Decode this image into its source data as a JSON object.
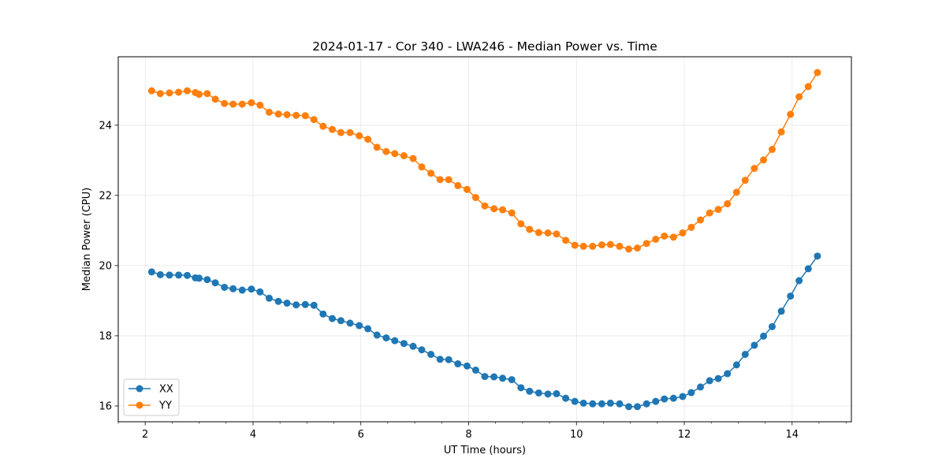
{
  "chart_data": {
    "type": "line",
    "title": "2024-01-17 - Cor 340 - LWA246 - Median Power vs. Time",
    "xlabel": "UT Time (hours)",
    "ylabel": "Median Power (CPU)",
    "xlim": [
      1.5,
      15.1
    ],
    "ylim": [
      15.55,
      25.95
    ],
    "xticks": [
      2,
      4,
      6,
      8,
      10,
      12,
      14
    ],
    "xtick_labels": [
      "2",
      "4",
      "6",
      "8",
      "10",
      "12",
      "14"
    ],
    "yticks": [
      16,
      18,
      20,
      22,
      24
    ],
    "ytick_labels": [
      "16",
      "18",
      "20",
      "22",
      "24"
    ],
    "grid": true,
    "legend_position": "lower-left",
    "series": [
      {
        "name": "XX",
        "color": "#1f77b4",
        "points": [
          [
            2.12,
            19.82
          ],
          [
            2.28,
            19.74
          ],
          [
            2.45,
            19.73
          ],
          [
            2.62,
            19.73
          ],
          [
            2.78,
            19.72
          ],
          [
            2.93,
            19.65
          ],
          [
            3.0,
            19.64
          ],
          [
            3.15,
            19.6
          ],
          [
            3.3,
            19.51
          ],
          [
            3.47,
            19.38
          ],
          [
            3.63,
            19.34
          ],
          [
            3.8,
            19.3
          ],
          [
            3.97,
            19.33
          ],
          [
            4.13,
            19.25
          ],
          [
            4.3,
            19.07
          ],
          [
            4.47,
            18.98
          ],
          [
            4.63,
            18.93
          ],
          [
            4.8,
            18.88
          ],
          [
            4.97,
            18.89
          ],
          [
            5.13,
            18.87
          ],
          [
            5.3,
            18.62
          ],
          [
            5.47,
            18.49
          ],
          [
            5.63,
            18.43
          ],
          [
            5.8,
            18.36
          ],
          [
            5.97,
            18.29
          ],
          [
            6.13,
            18.2
          ],
          [
            6.3,
            18.02
          ],
          [
            6.47,
            17.94
          ],
          [
            6.63,
            17.86
          ],
          [
            6.8,
            17.78
          ],
          [
            6.97,
            17.7
          ],
          [
            7.13,
            17.6
          ],
          [
            7.3,
            17.47
          ],
          [
            7.47,
            17.33
          ],
          [
            7.63,
            17.32
          ],
          [
            7.8,
            17.2
          ],
          [
            7.97,
            17.14
          ],
          [
            8.13,
            17.02
          ],
          [
            8.3,
            16.84
          ],
          [
            8.47,
            16.83
          ],
          [
            8.63,
            16.79
          ],
          [
            8.8,
            16.75
          ],
          [
            8.97,
            16.52
          ],
          [
            9.13,
            16.42
          ],
          [
            9.3,
            16.37
          ],
          [
            9.47,
            16.34
          ],
          [
            9.63,
            16.35
          ],
          [
            9.8,
            16.22
          ],
          [
            9.97,
            16.13
          ],
          [
            10.13,
            16.08
          ],
          [
            10.3,
            16.06
          ],
          [
            10.47,
            16.06
          ],
          [
            10.63,
            16.08
          ],
          [
            10.8,
            16.06
          ],
          [
            10.97,
            15.98
          ],
          [
            11.13,
            15.98
          ],
          [
            11.3,
            16.06
          ],
          [
            11.47,
            16.13
          ],
          [
            11.63,
            16.2
          ],
          [
            11.8,
            16.22
          ],
          [
            11.97,
            16.27
          ],
          [
            12.13,
            16.38
          ],
          [
            12.3,
            16.54
          ],
          [
            12.47,
            16.72
          ],
          [
            12.63,
            16.78
          ],
          [
            12.8,
            16.92
          ],
          [
            12.97,
            17.17
          ],
          [
            13.13,
            17.47
          ],
          [
            13.3,
            17.73
          ],
          [
            13.47,
            17.99
          ],
          [
            13.63,
            18.26
          ],
          [
            13.8,
            18.7
          ],
          [
            13.97,
            19.13
          ],
          [
            14.13,
            19.57
          ],
          [
            14.3,
            19.91
          ],
          [
            14.47,
            20.27
          ]
        ]
      },
      {
        "name": "YY",
        "color": "#ff7f0e",
        "points": [
          [
            2.12,
            24.98
          ],
          [
            2.28,
            24.9
          ],
          [
            2.45,
            24.92
          ],
          [
            2.62,
            24.94
          ],
          [
            2.78,
            24.98
          ],
          [
            2.93,
            24.93
          ],
          [
            3.0,
            24.88
          ],
          [
            3.15,
            24.9
          ],
          [
            3.3,
            24.74
          ],
          [
            3.47,
            24.62
          ],
          [
            3.63,
            24.6
          ],
          [
            3.8,
            24.6
          ],
          [
            3.97,
            24.64
          ],
          [
            4.13,
            24.57
          ],
          [
            4.3,
            24.37
          ],
          [
            4.47,
            24.32
          ],
          [
            4.63,
            24.3
          ],
          [
            4.8,
            24.28
          ],
          [
            4.97,
            24.27
          ],
          [
            5.13,
            24.16
          ],
          [
            5.3,
            23.97
          ],
          [
            5.47,
            23.88
          ],
          [
            5.63,
            23.79
          ],
          [
            5.8,
            23.79
          ],
          [
            5.97,
            23.7
          ],
          [
            6.13,
            23.6
          ],
          [
            6.3,
            23.37
          ],
          [
            6.47,
            23.25
          ],
          [
            6.63,
            23.19
          ],
          [
            6.8,
            23.13
          ],
          [
            6.97,
            23.05
          ],
          [
            7.13,
            22.81
          ],
          [
            7.3,
            22.63
          ],
          [
            7.47,
            22.45
          ],
          [
            7.63,
            22.45
          ],
          [
            7.8,
            22.28
          ],
          [
            7.97,
            22.17
          ],
          [
            8.13,
            21.94
          ],
          [
            8.3,
            21.7
          ],
          [
            8.47,
            21.62
          ],
          [
            8.63,
            21.59
          ],
          [
            8.8,
            21.5
          ],
          [
            8.97,
            21.19
          ],
          [
            9.13,
            21.03
          ],
          [
            9.3,
            20.94
          ],
          [
            9.47,
            20.93
          ],
          [
            9.63,
            20.9
          ],
          [
            9.8,
            20.72
          ],
          [
            9.97,
            20.58
          ],
          [
            10.13,
            20.55
          ],
          [
            10.3,
            20.55
          ],
          [
            10.47,
            20.59
          ],
          [
            10.63,
            20.6
          ],
          [
            10.8,
            20.55
          ],
          [
            10.97,
            20.47
          ],
          [
            11.13,
            20.5
          ],
          [
            11.3,
            20.63
          ],
          [
            11.47,
            20.75
          ],
          [
            11.63,
            20.84
          ],
          [
            11.8,
            20.81
          ],
          [
            11.97,
            20.93
          ],
          [
            12.13,
            21.09
          ],
          [
            12.3,
            21.3
          ],
          [
            12.47,
            21.5
          ],
          [
            12.63,
            21.6
          ],
          [
            12.8,
            21.76
          ],
          [
            12.97,
            22.09
          ],
          [
            13.13,
            22.43
          ],
          [
            13.3,
            22.77
          ],
          [
            13.47,
            23.01
          ],
          [
            13.63,
            23.31
          ],
          [
            13.8,
            23.81
          ],
          [
            13.97,
            24.31
          ],
          [
            14.13,
            24.81
          ],
          [
            14.3,
            25.1
          ],
          [
            14.47,
            25.5
          ]
        ]
      }
    ]
  }
}
